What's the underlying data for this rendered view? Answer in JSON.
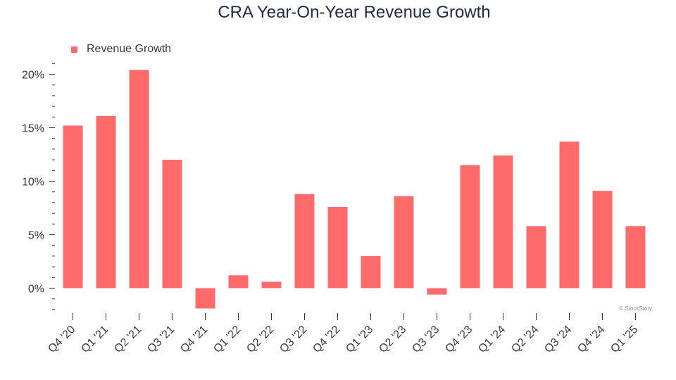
{
  "chart_data": {
    "type": "bar",
    "title": "CRA Year-On-Year Revenue Growth",
    "xlabel": "",
    "ylabel": "",
    "categories": [
      "Q4 '20",
      "Q1 '21",
      "Q2 '21",
      "Q3 '21",
      "Q4 '21",
      "Q1 '22",
      "Q2 '22",
      "Q3 '22",
      "Q4 '22",
      "Q1 '23",
      "Q2 '23",
      "Q3 '23",
      "Q4 '23",
      "Q1 '24",
      "Q2 '24",
      "Q3 '24",
      "Q4 '24",
      "Q1 '25"
    ],
    "series": [
      {
        "name": "Revenue Growth",
        "values": [
          15.2,
          16.1,
          20.4,
          12.0,
          -1.9,
          1.2,
          0.6,
          8.8,
          7.6,
          3.0,
          8.6,
          -0.6,
          11.5,
          12.4,
          5.8,
          13.7,
          9.1,
          5.8
        ]
      }
    ],
    "ylim": [
      -2.3,
      22
    ],
    "yticks": [
      0,
      5,
      10,
      15,
      20
    ],
    "ytick_labels": [
      "0%",
      "5%",
      "10%",
      "15%",
      "20%"
    ],
    "legend_position": "top-left",
    "grid": false,
    "bar_color": "#ff6b6b",
    "text_color": "#333a45",
    "title_color": "#1f2a44"
  },
  "credit": "© StockStory"
}
